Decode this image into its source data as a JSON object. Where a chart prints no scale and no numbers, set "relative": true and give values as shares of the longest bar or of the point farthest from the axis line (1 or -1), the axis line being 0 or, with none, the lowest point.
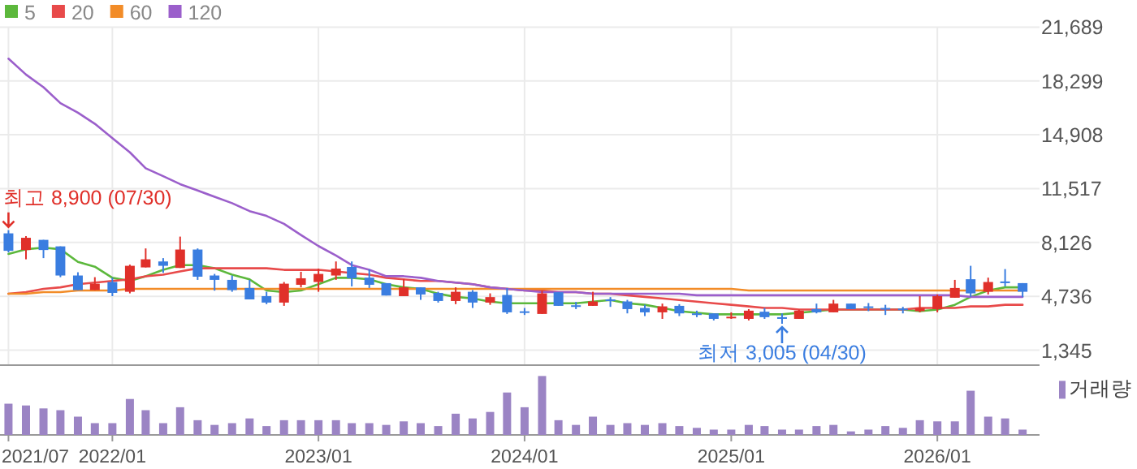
{
  "chart_data": [
    {
      "type": "candlestick",
      "tick_labels": "y",
      "grid": true,
      "legend": "top left",
      "x": [
        "2021-07",
        "2021-08",
        "2021-09",
        "2021-10",
        "2021-11",
        "2021-12",
        "2022-01",
        "2022-02",
        "2022-03",
        "2022-04",
        "2022-05",
        "2022-06",
        "2022-07",
        "2022-08",
        "2022-09",
        "2022-10",
        "2022-11",
        "2022-12",
        "2023-01",
        "2023-02",
        "2023-03",
        "2023-04",
        "2023-05",
        "2023-06",
        "2023-07",
        "2023-08",
        "2023-09",
        "2023-10",
        "2023-11",
        "2023-12",
        "2024-01",
        "2024-02",
        "2024-03",
        "2024-04",
        "2024-05",
        "2024-06",
        "2024-07",
        "2024-08",
        "2024-09",
        "2024-10",
        "2024-11",
        "2024-12",
        "2025-01",
        "2025-02",
        "2025-03",
        "2025-04",
        "2025-05",
        "2025-06",
        "2025-07",
        "2025-08",
        "2025-09",
        "2025-10",
        "2025-11",
        "2025-12",
        "2026-01",
        "2026-02",
        "2026-03",
        "2026-04",
        "2026-05",
        "2026-06"
      ],
      "ohlc": [
        [
          8700,
          8900,
          7500,
          7600
        ],
        [
          7650,
          8525,
          7065,
          8420
        ],
        [
          8290,
          8290,
          7140,
          7650
        ],
        [
          7880,
          7880,
          5940,
          6045
        ],
        [
          6045,
          6250,
          5125,
          5125
        ],
        [
          5125,
          5940,
          5125,
          5530
        ],
        [
          5635,
          5910,
          4745,
          4950
        ],
        [
          5020,
          6730,
          4920,
          6656
        ],
        [
          6555,
          7750,
          6555,
          7065
        ],
        [
          6930,
          7140,
          6215,
          6656
        ],
        [
          6520,
          8495,
          6520,
          7680
        ],
        [
          7680,
          7750,
          5770,
          5970
        ],
        [
          6045,
          6145,
          5090,
          5770
        ],
        [
          5770,
          6045,
          5020,
          5125
        ],
        [
          5260,
          5770,
          4540,
          4540
        ],
        [
          4745,
          5020,
          4240,
          4340
        ],
        [
          4340,
          5635,
          4135,
          5530
        ],
        [
          5460,
          6280,
          5300,
          5870
        ],
        [
          5635,
          6480,
          5020,
          6145
        ],
        [
          6045,
          6930,
          5770,
          6480
        ],
        [
          6585,
          6930,
          5360,
          5870
        ],
        [
          5910,
          6430,
          5260,
          5460
        ],
        [
          5565,
          5565,
          4785,
          4785
        ],
        [
          4745,
          5810,
          4745,
          5300
        ],
        [
          5300,
          5300,
          4510,
          4850
        ],
        [
          4950,
          5020,
          4340,
          4440
        ],
        [
          4440,
          5300,
          4240,
          5020
        ],
        [
          5020,
          5125,
          4000,
          4340
        ],
        [
          4340,
          4920,
          4200,
          4685
        ],
        [
          4820,
          5260,
          3625,
          3725
        ],
        [
          3790,
          4000,
          3560,
          3760
        ],
        [
          3625,
          5090,
          3625,
          4920
        ],
        [
          4990,
          4990,
          4135,
          4135
        ],
        [
          4170,
          4380,
          3930,
          4135
        ],
        [
          4135,
          5020,
          4135,
          4410
        ],
        [
          4540,
          4685,
          4070,
          4440
        ],
        [
          4410,
          4510,
          3660,
          3930
        ],
        [
          4000,
          4200,
          3490,
          3725
        ],
        [
          3725,
          4275,
          3315,
          4100
        ],
        [
          4135,
          4240,
          3490,
          3660
        ],
        [
          3660,
          3830,
          3420,
          3600
        ],
        [
          3660,
          3660,
          3215,
          3315
        ],
        [
          3350,
          3725,
          3315,
          3450
        ],
        [
          3315,
          3930,
          3215,
          3830
        ],
        [
          3765,
          4000,
          3315,
          3420
        ],
        [
          3420,
          3660,
          3005,
          3315
        ],
        [
          3315,
          3900,
          3315,
          3830
        ],
        [
          3930,
          4275,
          3660,
          3725
        ],
        [
          3725,
          4510,
          3725,
          4275
        ],
        [
          4275,
          4275,
          3930,
          3930
        ],
        [
          4100,
          4310,
          3800,
          4000
        ],
        [
          4000,
          4200,
          3560,
          3930
        ],
        [
          3965,
          4070,
          3660,
          3900
        ],
        [
          3800,
          4745,
          3725,
          4000
        ],
        [
          3930,
          4850,
          3725,
          4745
        ],
        [
          4645,
          5770,
          4645,
          5260
        ],
        [
          5810,
          6656,
          4685,
          4920
        ],
        [
          5020,
          5910,
          4850,
          5635
        ],
        [
          5670,
          6450,
          5360,
          5565
        ],
        [
          5565,
          5565,
          4685,
          5020
        ]
      ],
      "series": [
        {
          "name": "5",
          "type": "line",
          "color": "#5cb83c",
          "values": [
            7400,
            7700,
            7800,
            7700,
            6900,
            6600,
            5900,
            5700,
            6000,
            6400,
            6700,
            6700,
            6500,
            6100,
            5800,
            5100,
            5000,
            5100,
            5500,
            5900,
            5900,
            5800,
            5500,
            5300,
            5200,
            4900,
            4700,
            4600,
            4400,
            4300,
            4300,
            4300,
            4300,
            4300,
            4400,
            4500,
            4300,
            4200,
            4000,
            3800,
            3700,
            3600,
            3600,
            3600,
            3600,
            3600,
            3700,
            3800,
            3900,
            3900,
            3900,
            3900,
            3900,
            3800,
            3900,
            4200,
            4700,
            5100,
            5300,
            5300
          ]
        },
        {
          "name": "20",
          "type": "line",
          "color": "#e84a4a",
          "values": [
            4900,
            5000,
            5200,
            5300,
            5500,
            5600,
            5700,
            5800,
            6000,
            6100,
            6300,
            6500,
            6500,
            6500,
            6500,
            6500,
            6400,
            6400,
            6400,
            6300,
            6200,
            6100,
            5900,
            5800,
            5700,
            5700,
            5600,
            5500,
            5300,
            5200,
            5100,
            5100,
            5000,
            5000,
            4900,
            4900,
            4800,
            4700,
            4600,
            4500,
            4400,
            4300,
            4200,
            4100,
            4000,
            4000,
            3900,
            3900,
            3900,
            3900,
            3900,
            3900,
            3900,
            4000,
            4000,
            4000,
            4100,
            4100,
            4200,
            4200
          ]
        },
        {
          "name": "60",
          "type": "line",
          "color": "#f28c28",
          "values": [
            4900,
            4900,
            5000,
            5000,
            5100,
            5100,
            5100,
            5200,
            5200,
            5200,
            5200,
            5200,
            5200,
            5200,
            5200,
            5200,
            5200,
            5200,
            5200,
            5200,
            5200,
            5200,
            5200,
            5200,
            5200,
            5200,
            5200,
            5200,
            5200,
            5200,
            5200,
            5200,
            5200,
            5200,
            5200,
            5200,
            5200,
            5200,
            5200,
            5200,
            5200,
            5200,
            5200,
            5100,
            5100,
            5100,
            5100,
            5100,
            5100,
            5100,
            5100,
            5100,
            5100,
            5100,
            5100,
            5100,
            5100,
            5100,
            5100,
            5100
          ]
        },
        {
          "name": "120",
          "type": "line",
          "color": "#9b5fcb",
          "values": [
            19700,
            18700,
            17900,
            16900,
            16300,
            15600,
            14700,
            13800,
            12800,
            12300,
            11800,
            11400,
            11000,
            10600,
            10100,
            9800,
            9300,
            8600,
            7900,
            7300,
            6700,
            6400,
            6000,
            6000,
            5900,
            5700,
            5600,
            5500,
            5300,
            5200,
            5100,
            5000,
            5000,
            5000,
            4900,
            4900,
            4900,
            4900,
            4900,
            4900,
            4800,
            4800,
            4800,
            4800,
            4800,
            4800,
            4800,
            4800,
            4800,
            4800,
            4800,
            4800,
            4800,
            4800,
            4800,
            4800,
            4700,
            4700,
            4700,
            4700
          ]
        }
      ],
      "xlim": [
        "2021-06-16",
        "2026-07-01"
      ],
      "ylim": [
        400,
        21689
      ],
      "yticks": [
        {
          "value": 1345,
          "label": "1,345"
        },
        {
          "value": 4736,
          "label": "4,736"
        },
        {
          "value": 8126,
          "label": "8,126"
        },
        {
          "value": 11517,
          "label": "11,517"
        },
        {
          "value": 14908,
          "label": "14,908"
        },
        {
          "value": 18299,
          "label": "18,299"
        },
        {
          "value": 21689,
          "label": "21,689"
        }
      ],
      "xticks": [
        {
          "value": "2021-07",
          "label": null
        },
        {
          "value": "2022-01",
          "label": null
        },
        {
          "value": "2023-01",
          "label": null
        },
        {
          "value": "2024-01",
          "label": null
        },
        {
          "value": "2025-01",
          "label": null
        },
        {
          "value": "2026-01",
          "label": null
        }
      ],
      "annotations": [
        {
          "text": "최고 8,900 (07/30)",
          "x": "2021-07",
          "y": 8900
        },
        {
          "text": "최저 3,005 (04/30)",
          "x": "2025-04",
          "y": 3005
        }
      ]
    },
    {
      "type": "bar",
      "relative": true,
      "tick_labels": "x",
      "legend": "top right",
      "x": [
        "2021-07",
        "2021-08",
        "2021-09",
        "2021-10",
        "2021-11",
        "2021-12",
        "2022-01",
        "2022-02",
        "2022-03",
        "2022-04",
        "2022-05",
        "2022-06",
        "2022-07",
        "2022-08",
        "2022-09",
        "2022-10",
        "2022-11",
        "2022-12",
        "2023-01",
        "2023-02",
        "2023-03",
        "2023-04",
        "2023-05",
        "2023-06",
        "2023-07",
        "2023-08",
        "2023-09",
        "2023-10",
        "2023-11",
        "2023-12",
        "2024-01",
        "2024-02",
        "2024-03",
        "2024-04",
        "2024-05",
        "2024-06",
        "2024-07",
        "2024-08",
        "2024-09",
        "2024-10",
        "2024-11",
        "2024-12",
        "2025-01",
        "2025-02",
        "2025-03",
        "2025-04",
        "2025-05",
        "2025-06",
        "2025-07",
        "2025-08",
        "2025-09",
        "2025-10",
        "2025-11",
        "2025-12",
        "2026-01",
        "2026-02",
        "2026-03",
        "2026-04",
        "2026-05",
        "2026-06"
      ],
      "series": [
        {
          "name": "거래량",
          "color": "#9b84c4",
          "values": [
            0.53,
            0.5,
            0.45,
            0.42,
            0.31,
            0.2,
            0.2,
            0.61,
            0.42,
            0.2,
            0.47,
            0.25,
            0.17,
            0.2,
            0.28,
            0.15,
            0.25,
            0.25,
            0.25,
            0.25,
            0.2,
            0.2,
            0.17,
            0.23,
            0.2,
            0.15,
            0.36,
            0.28,
            0.39,
            0.72,
            0.47,
            1,
            0.25,
            0.17,
            0.31,
            0.17,
            0.2,
            0.17,
            0.2,
            0.15,
            0.12,
            0.09,
            0.09,
            0.17,
            0.15,
            0.09,
            0.09,
            0.15,
            0.17,
            0.06,
            0.09,
            0.15,
            0.12,
            0.25,
            0.23,
            0.23,
            0.75,
            0.31,
            0.28,
            0.09
          ]
        }
      ],
      "xlim": [
        "2021-06-16",
        "2026-07-01"
      ],
      "xticks": [
        {
          "value": "2021-07",
          "label": "2021/07"
        },
        {
          "value": "2022-01",
          "label": "2022/01"
        },
        {
          "value": "2023-01",
          "label": "2023/01"
        },
        {
          "value": "2024-01",
          "label": "2024/01"
        },
        {
          "value": "2025-01",
          "label": "2025/01"
        },
        {
          "value": "2026-01",
          "label": "2026/01"
        }
      ]
    }
  ]
}
